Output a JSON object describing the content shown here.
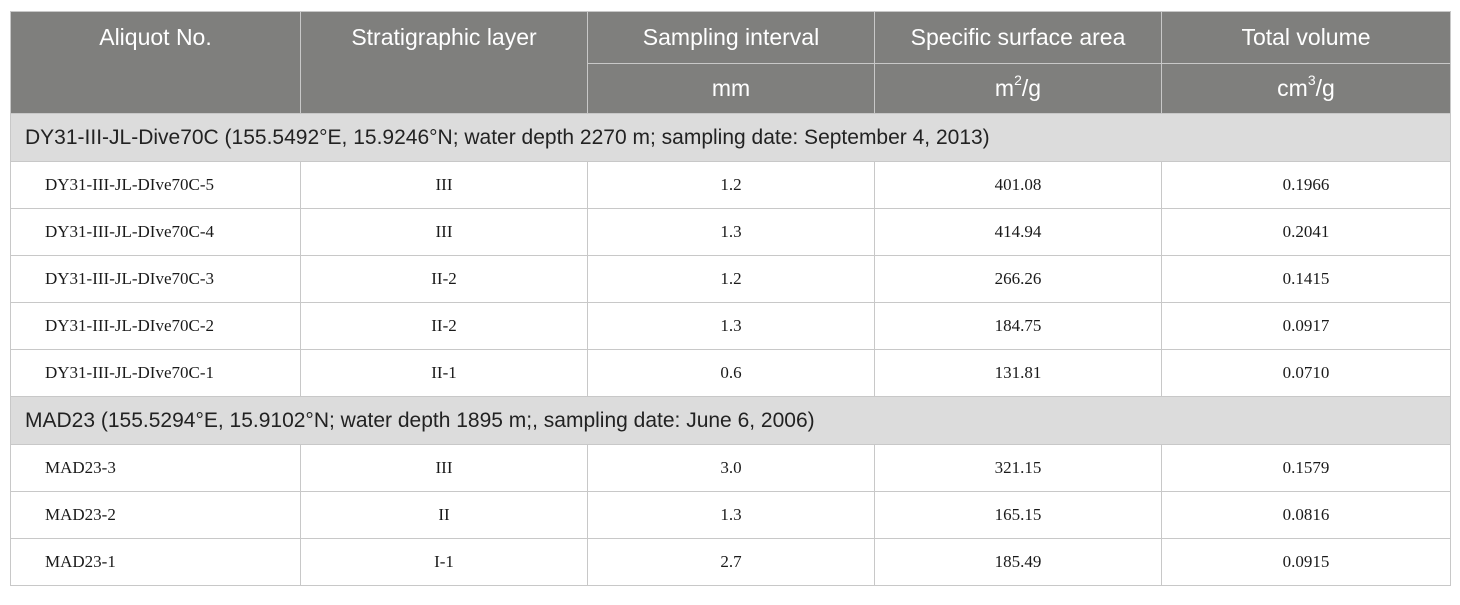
{
  "headers": {
    "aliquot": "Aliquot No.",
    "layer": "Stratigraphic layer",
    "interval": "Sampling interval",
    "ssa": "Specific surface area",
    "volume": "Total volume"
  },
  "units": {
    "interval": "mm",
    "ssa_base": "m",
    "ssa_exp": "2",
    "ssa_tail": "/g",
    "volume_base": "cm",
    "volume_exp": "3",
    "volume_tail": "/g"
  },
  "groups": [
    {
      "label": "DY31-III-JL-Dive70C (155.5492°E, 15.9246°N; water depth 2270 m; sampling date: September 4, 2013)",
      "rows": [
        {
          "aliquot": "DY31-III-JL-DIve70C-5",
          "layer": "III",
          "interval": "1.2",
          "ssa": "401.08",
          "volume": "0.1966"
        },
        {
          "aliquot": "DY31-III-JL-DIve70C-4",
          "layer": "III",
          "interval": "1.3",
          "ssa": "414.94",
          "volume": "0.2041"
        },
        {
          "aliquot": "DY31-III-JL-DIve70C-3",
          "layer": "II-2",
          "interval": "1.2",
          "ssa": "266.26",
          "volume": "0.1415"
        },
        {
          "aliquot": "DY31-III-JL-DIve70C-2",
          "layer": "II-2",
          "interval": "1.3",
          "ssa": "184.75",
          "volume": "0.0917"
        },
        {
          "aliquot": "DY31-III-JL-DIve70C-1",
          "layer": "II-1",
          "interval": "0.6",
          "ssa": "131.81",
          "volume": "0.0710"
        }
      ]
    },
    {
      "label": "MAD23 (155.5294°E, 15.9102°N; water depth 1895 m;, sampling date: June 6, 2006)",
      "rows": [
        {
          "aliquot": "MAD23-3",
          "layer": "III",
          "interval": "3.0",
          "ssa": "321.15",
          "volume": "0.1579"
        },
        {
          "aliquot": "MAD23-2",
          "layer": "II",
          "interval": "1.3",
          "ssa": "165.15",
          "volume": "0.0816"
        },
        {
          "aliquot": "MAD23-1",
          "layer": "I-1",
          "interval": "2.7",
          "ssa": "185.49",
          "volume": "0.0915"
        }
      ]
    }
  ]
}
